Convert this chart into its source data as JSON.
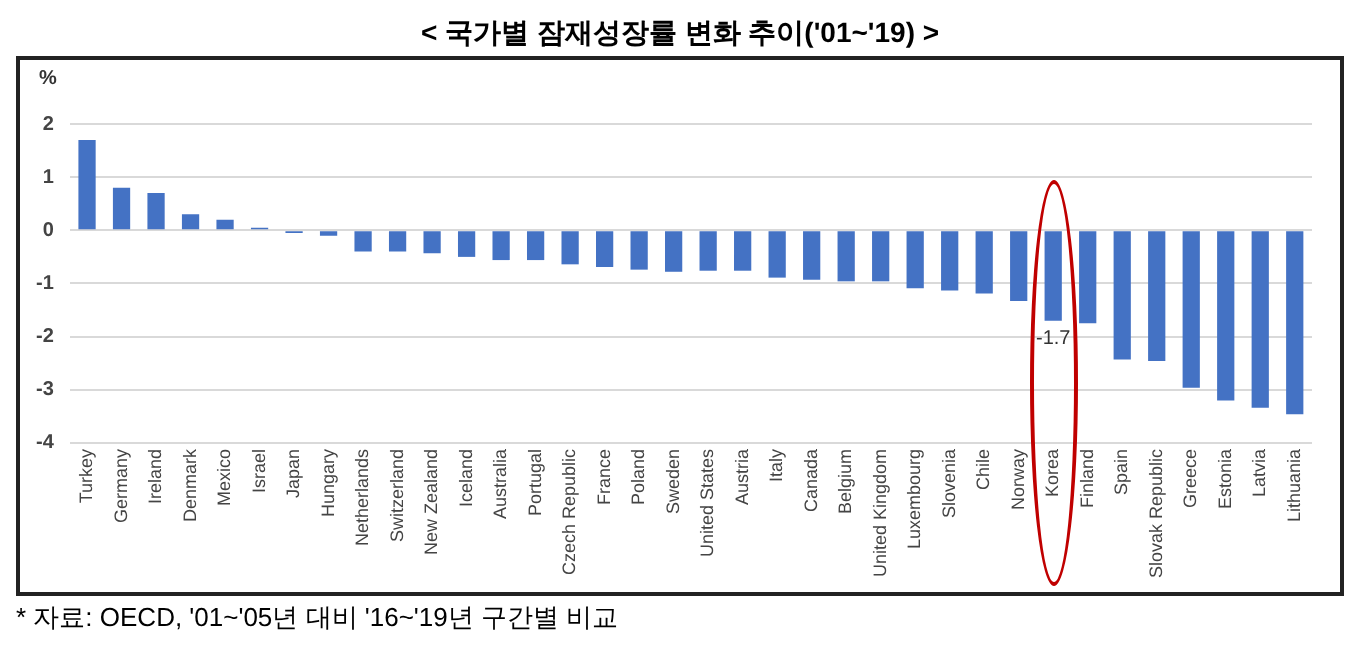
{
  "chart_data": {
    "type": "bar",
    "title": "< 국가별 잠재성장률 변화 추이('01~'19) >",
    "ylabel": "%",
    "categories": [
      "Turkey",
      "Germany",
      "Ireland",
      "Denmark",
      "Mexico",
      "Israel",
      "Japan",
      "Hungary",
      "Netherlands",
      "Switzerland",
      "New Zealand",
      "Iceland",
      "Australia",
      "Portugal",
      "Czech Republic",
      "France",
      "Poland",
      "Sweden",
      "United States",
      "Austria",
      "Italy",
      "Canada",
      "Belgium",
      "United Kingdom",
      "Luxembourg",
      "Slovenia",
      "Chile",
      "Norway",
      "Korea",
      "Finland",
      "Spain",
      "Slovak Republic",
      "Greece",
      "Estonia",
      "Latvia",
      "Lithuania"
    ],
    "values": [
      1.7,
      0.8,
      0.7,
      0.3,
      0.2,
      0.05,
      -0.05,
      -0.1,
      -0.4,
      -0.4,
      -0.43,
      -0.5,
      -0.56,
      -0.56,
      -0.64,
      -0.69,
      -0.74,
      -0.78,
      -0.76,
      -0.76,
      -0.89,
      -0.93,
      -0.96,
      -0.96,
      -1.09,
      -1.13,
      -1.19,
      -1.33,
      -1.7,
      -1.75,
      -2.43,
      -2.46,
      -2.96,
      -3.2,
      -3.34,
      -3.46
    ],
    "value_labels": [
      null,
      null,
      null,
      null,
      null,
      null,
      null,
      null,
      null,
      null,
      null,
      null,
      null,
      null,
      null,
      null,
      null,
      null,
      null,
      null,
      null,
      null,
      null,
      null,
      null,
      null,
      null,
      null,
      "-1.7",
      null,
      null,
      null,
      null,
      null,
      null,
      null
    ],
    "color": "#4472c4",
    "ylim": [
      -4,
      2
    ],
    "yticks": [
      -4,
      -3,
      -2,
      -1,
      0,
      1,
      2
    ],
    "grid": "y",
    "annotations": [
      "* 자료: OECD, '01~'05년 대비 '16~'19년 구간별 비교"
    ]
  }
}
